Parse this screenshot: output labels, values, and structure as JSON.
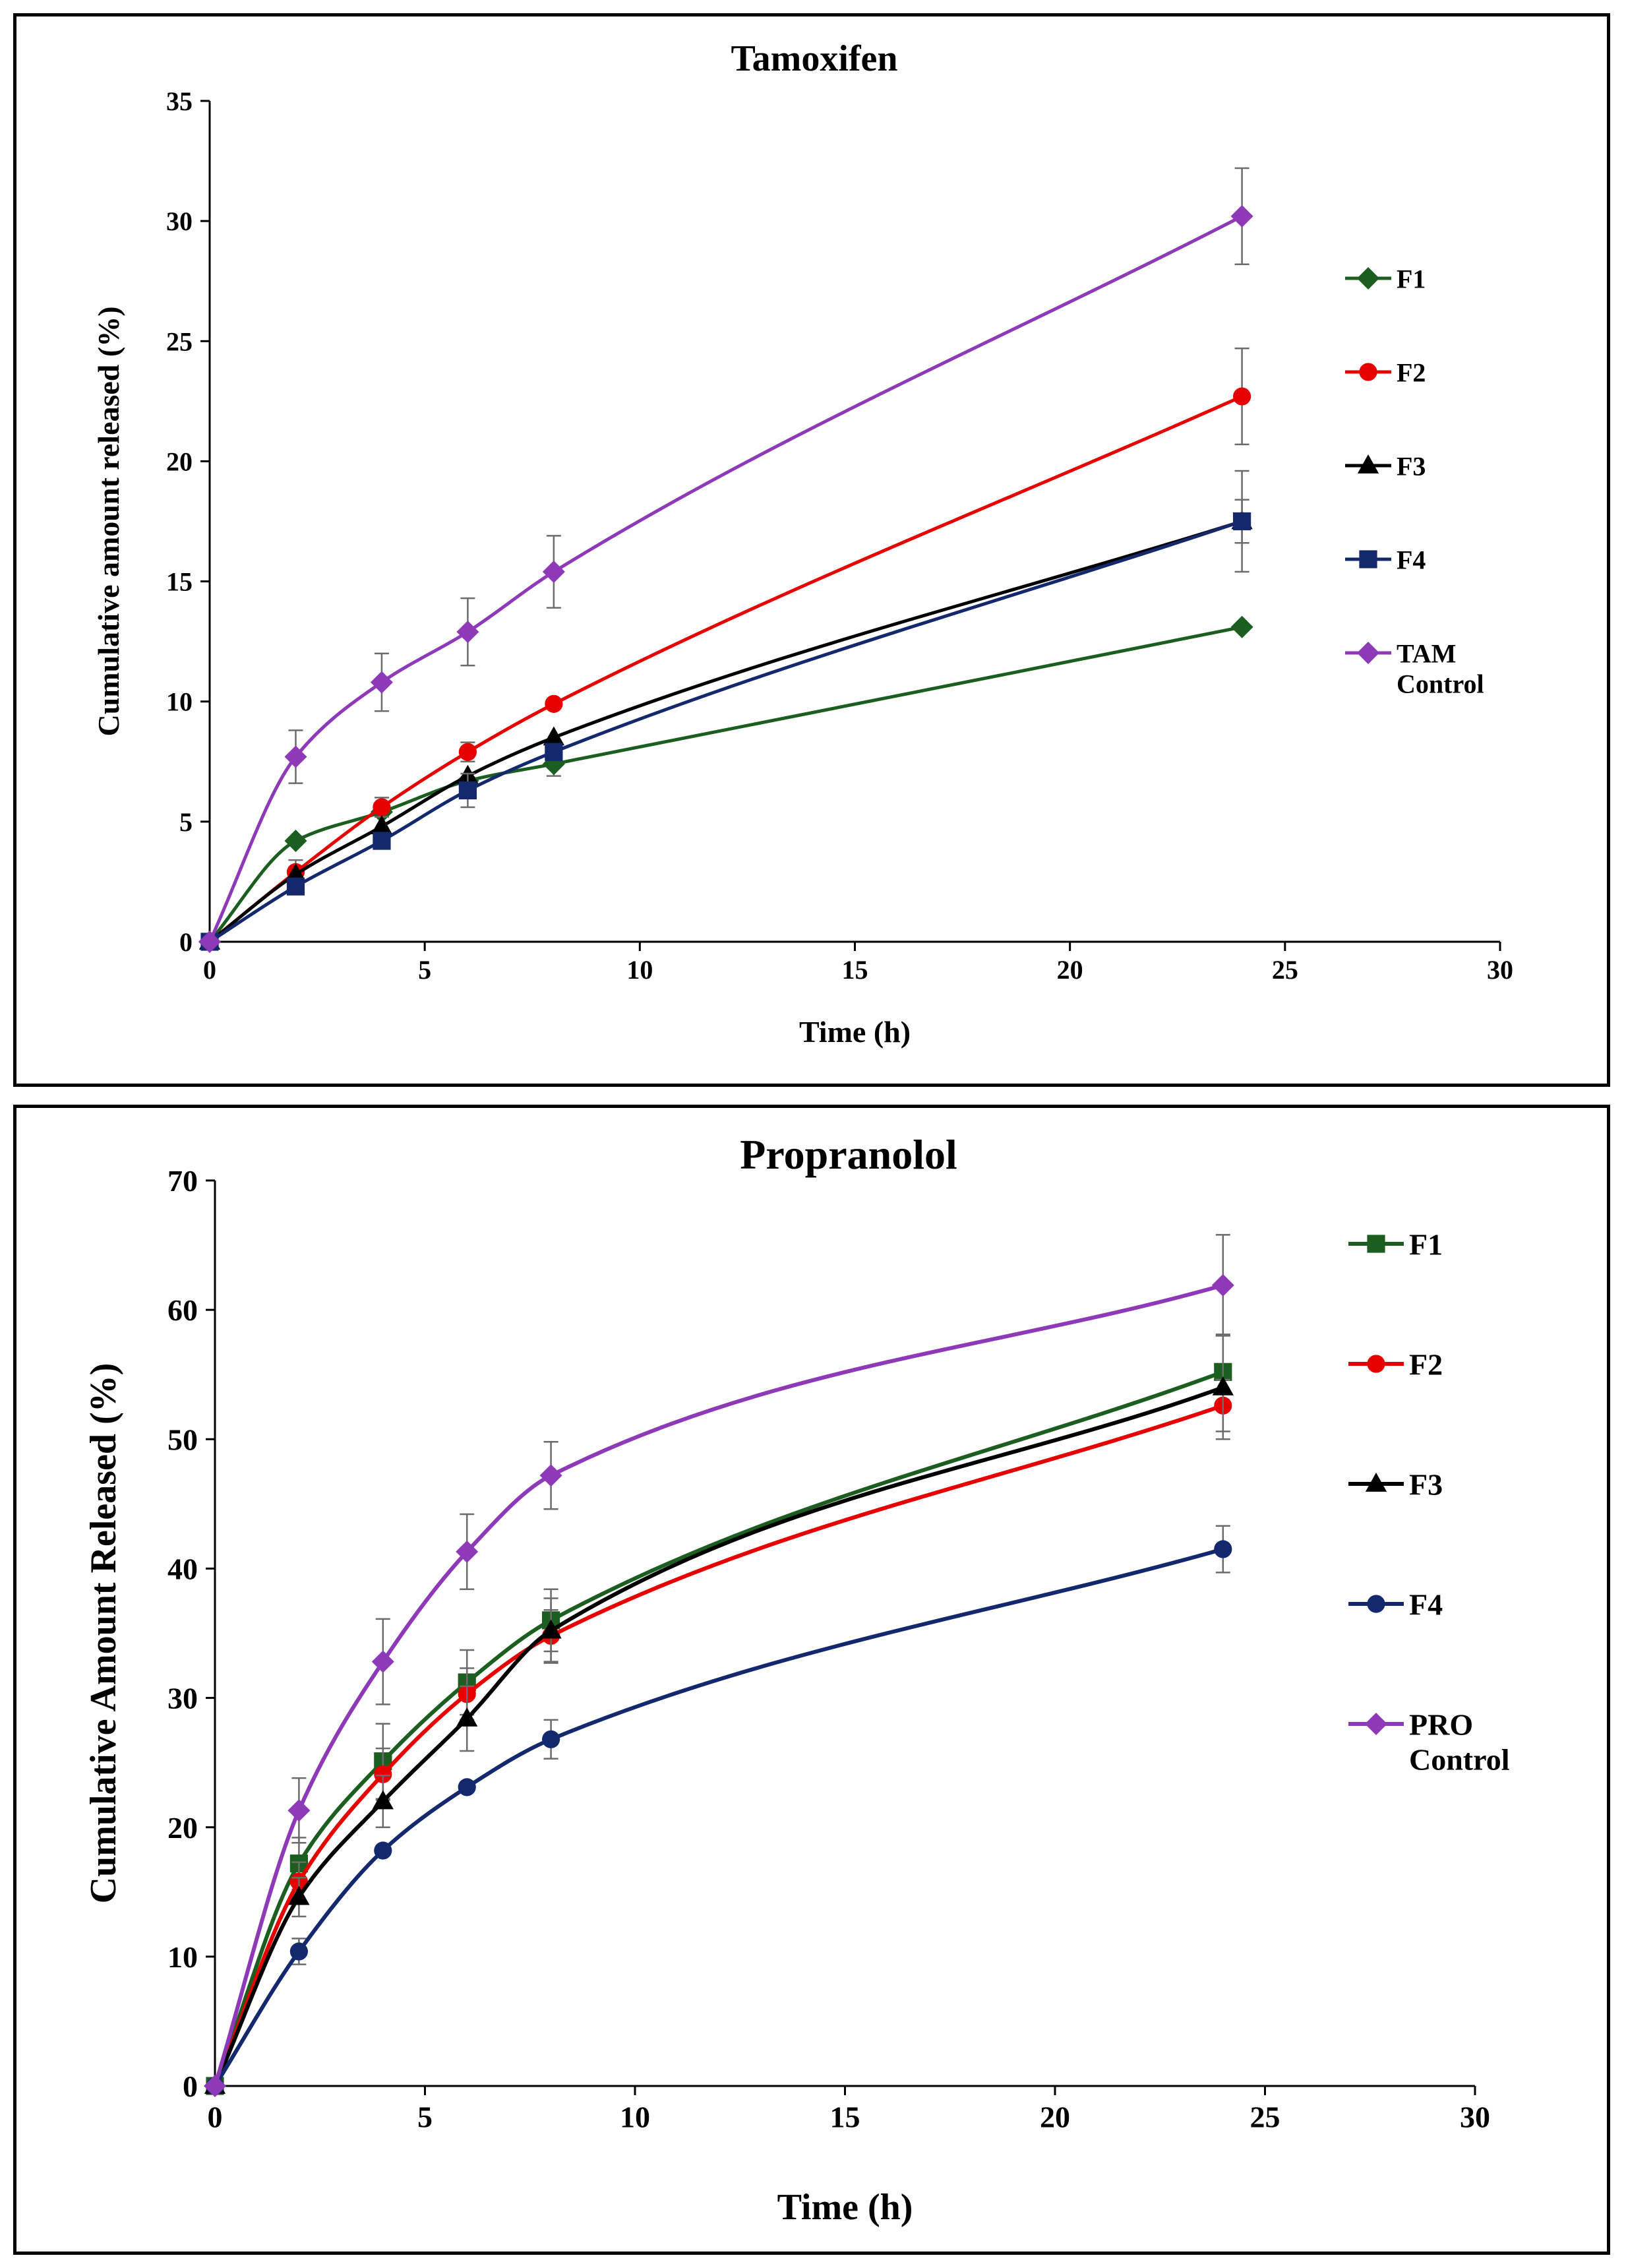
{
  "chart_data": [
    {
      "type": "line",
      "title": "Tamoxifen",
      "xlabel": "Time (h)",
      "ylabel": "Cumulative amount released (%)",
      "xlim": [
        0,
        30
      ],
      "ylim": [
        0,
        35
      ],
      "xticks": [
        0,
        5,
        10,
        15,
        20,
        25,
        30
      ],
      "yticks": [
        0,
        5,
        10,
        15,
        20,
        25,
        30,
        35
      ],
      "x": [
        0,
        2,
        4,
        6,
        8,
        24
      ],
      "series": [
        {
          "name": "F1",
          "legend_lines": [
            "F1"
          ],
          "color": "#1b5e20",
          "marker": "diamond",
          "values": [
            0,
            4.2,
            5.4,
            6.7,
            7.4,
            13.1
          ],
          "errors": [
            0,
            0,
            0,
            0,
            0.5,
            0
          ]
        },
        {
          "name": "F2",
          "legend_lines": [
            "F2"
          ],
          "color": "#e60000",
          "marker": "circle",
          "values": [
            0,
            2.9,
            5.6,
            7.9,
            9.9,
            22.7
          ],
          "errors": [
            0,
            0.5,
            0.4,
            0.4,
            0,
            2.0
          ]
        },
        {
          "name": "F3",
          "legend_lines": [
            "F3"
          ],
          "color": "#000000",
          "marker": "triangle",
          "values": [
            0,
            2.8,
            4.8,
            6.9,
            8.5,
            17.5
          ],
          "errors": [
            0,
            0,
            0,
            0,
            0,
            0.9
          ]
        },
        {
          "name": "F4",
          "legend_lines": [
            "F4"
          ],
          "color": "#14286e",
          "marker": "square",
          "values": [
            0,
            2.3,
            4.2,
            6.3,
            7.9,
            17.5
          ],
          "errors": [
            0,
            0,
            0,
            0.7,
            0,
            2.1
          ]
        },
        {
          "name": "TAM Control",
          "legend_lines": [
            "TAM",
            "Control"
          ],
          "color": "#8e3ab8",
          "marker": "diamond",
          "values": [
            0,
            7.7,
            10.8,
            12.9,
            15.4,
            30.2
          ],
          "errors": [
            0,
            1.1,
            1.2,
            1.4,
            1.5,
            2.0
          ]
        }
      ]
    },
    {
      "type": "line",
      "title": "Propranolol",
      "xlabel": "Time (h)",
      "ylabel": "Cumulative Amount Released (%)",
      "xlim": [
        0,
        30
      ],
      "ylim": [
        0,
        70
      ],
      "xticks": [
        0,
        5,
        10,
        15,
        20,
        25,
        30
      ],
      "yticks": [
        0,
        10,
        20,
        30,
        40,
        50,
        60,
        70
      ],
      "x": [
        0,
        2,
        4,
        6,
        8,
        24
      ],
      "series": [
        {
          "name": "F1",
          "legend_lines": [
            "F1"
          ],
          "color": "#1b5e20",
          "marker": "square",
          "values": [
            0,
            17.2,
            25.1,
            31.2,
            36.0,
            55.2
          ],
          "errors": [
            0,
            2.0,
            2.9,
            2.5,
            2.4,
            2.9
          ]
        },
        {
          "name": "F2",
          "legend_lines": [
            "F2"
          ],
          "color": "#e60000",
          "marker": "circle",
          "values": [
            0,
            15.8,
            24.1,
            30.3,
            34.8,
            52.6
          ],
          "errors": [
            0,
            1.5,
            2.0,
            2.0,
            2.0,
            2.0
          ]
        },
        {
          "name": "F3",
          "legend_lines": [
            "F3"
          ],
          "color": "#000000",
          "marker": "triangle",
          "values": [
            0,
            14.6,
            22.0,
            28.4,
            35.2,
            54.0
          ],
          "errors": [
            0,
            1.5,
            2.0,
            2.5,
            2.5,
            4.0
          ]
        },
        {
          "name": "F4",
          "legend_lines": [
            "F4"
          ],
          "color": "#14286e",
          "marker": "circle",
          "values": [
            0,
            10.4,
            18.2,
            23.1,
            26.8,
            41.5
          ],
          "errors": [
            0,
            1.0,
            0,
            0,
            1.5,
            1.8
          ]
        },
        {
          "name": "PRO Control",
          "legend_lines": [
            "PRO",
            "Control"
          ],
          "color": "#8e3ab8",
          "marker": "diamond",
          "values": [
            0,
            21.3,
            32.8,
            41.3,
            47.2,
            61.9
          ],
          "errors": [
            0,
            2.5,
            3.3,
            2.9,
            2.6,
            3.9
          ]
        }
      ]
    }
  ]
}
